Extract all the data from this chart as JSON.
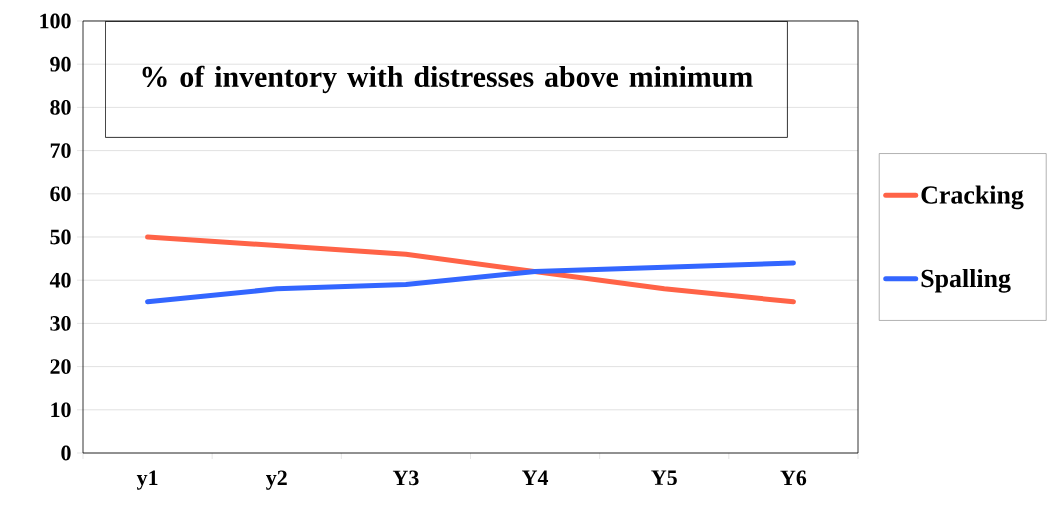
{
  "chart_data": {
    "type": "line",
    "title": "% of inventory with distresses above minimum",
    "categories": [
      "y1",
      "y2",
      "Y3",
      "Y4",
      "Y5",
      "Y6"
    ],
    "series": [
      {
        "name": "Cracking",
        "color": "#ff6347",
        "values": [
          50,
          48,
          46,
          42,
          38,
          35
        ]
      },
      {
        "name": "Spalling",
        "color": "#3366ff",
        "values": [
          35,
          38,
          39,
          42,
          43,
          44
        ]
      }
    ],
    "ylim": [
      0,
      100
    ],
    "yticks": [
      0,
      10,
      20,
      30,
      40,
      50,
      60,
      70,
      80,
      90,
      100
    ],
    "grid": "y",
    "legend": "right",
    "marker": "none",
    "line_style": "solid"
  }
}
